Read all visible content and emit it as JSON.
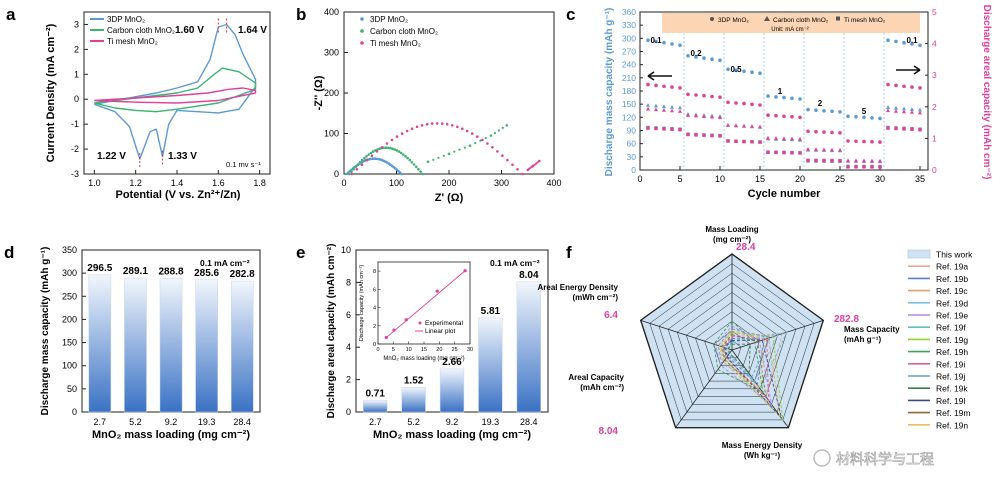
{
  "panels": {
    "a": {
      "letter": "a",
      "type": "line",
      "xlabel": "Potential (V vs. Zn²⁺/Zn)",
      "ylabel": "Current Density (mA cm⁻²)",
      "xlim": [
        0.95,
        1.85
      ],
      "ylim": [
        -3,
        3.5
      ],
      "xticks": [
        "1.0",
        "1.2",
        "1.4",
        "1.6",
        "1.8"
      ],
      "yticks": [
        "-3",
        "-2",
        "-1",
        "0",
        "1",
        "2",
        "3"
      ],
      "legend": [
        "3DP MnO₂",
        "Carbon cloth MnO₂",
        "Ti mesh MnO₂"
      ],
      "annotations": [
        "1.60 V",
        "1.64 V",
        "1.22 V",
        "1.33 V",
        "0.1 mv s⁻¹"
      ],
      "series": [
        {
          "name": "3DP MnO₂",
          "color": "#5b9bd5",
          "x": [
            1.0,
            1.1,
            1.2,
            1.3,
            1.4,
            1.5,
            1.56,
            1.6,
            1.64,
            1.68,
            1.72,
            1.78,
            1.78,
            1.7,
            1.6,
            1.5,
            1.4,
            1.36,
            1.33,
            1.3,
            1.27,
            1.22,
            1.17,
            1.1,
            1.0
          ],
          "y": [
            -0.2,
            -0.05,
            0.1,
            0.25,
            0.45,
            0.7,
            1.6,
            2.9,
            3.0,
            2.6,
            1.8,
            0.8,
            0.5,
            -0.4,
            -0.55,
            -0.5,
            -0.45,
            -1.0,
            -2.3,
            -1.2,
            -1.3,
            -2.4,
            -1.1,
            -0.5,
            -0.2
          ]
        },
        {
          "name": "Carbon cloth MnO₂",
          "color": "#3cb371",
          "x": [
            1.0,
            1.2,
            1.4,
            1.5,
            1.58,
            1.62,
            1.7,
            1.78,
            1.78,
            1.6,
            1.4,
            1.3,
            1.2,
            1.1,
            1.0
          ],
          "y": [
            -0.15,
            0.05,
            0.25,
            0.45,
            1.0,
            1.25,
            1.1,
            0.65,
            0.4,
            -0.15,
            -0.4,
            -0.5,
            -0.45,
            -0.35,
            -0.15
          ]
        },
        {
          "name": "Ti mesh MnO₂",
          "color": "#e0409a",
          "x": [
            1.0,
            1.2,
            1.4,
            1.55,
            1.65,
            1.72,
            1.78,
            1.78,
            1.6,
            1.4,
            1.2,
            1.0
          ],
          "y": [
            -0.05,
            0.05,
            0.15,
            0.25,
            0.4,
            0.45,
            0.35,
            0.25,
            -0.05,
            -0.15,
            -0.12,
            -0.05
          ]
        }
      ]
    },
    "b": {
      "letter": "b",
      "type": "scatter",
      "xlabel": "Z' (Ω)",
      "ylabel": "-Z'' (Ω)",
      "xlim": [
        0,
        400
      ],
      "ylim": [
        0,
        400
      ],
      "xticks": [
        "0",
        "100",
        "200",
        "300",
        "400"
      ],
      "yticks": [
        "0",
        "100",
        "200",
        "300",
        "400"
      ],
      "legend": [
        "3DP MnO₂",
        "Carbon cloth MnO₂",
        "Ti mesh MnO₂"
      ],
      "series": [
        {
          "name": "3DP MnO₂",
          "color": "#5b9bd5",
          "kind": "arc",
          "x0": 5,
          "x1": 110,
          "peak": 38,
          "tail": []
        },
        {
          "name": "Carbon cloth MnO₂",
          "color": "#3cb371",
          "kind": "arc",
          "x0": 10,
          "x1": 150,
          "peak": 65,
          "tail": [
            [
              160,
              30
            ],
            [
              200,
              50
            ],
            [
              240,
              70
            ],
            [
              280,
              95
            ],
            [
              310,
              120
            ]
          ]
        },
        {
          "name": "Ti mesh MnO₂",
          "color": "#e0409a",
          "kind": "arc",
          "x0": 15,
          "x1": 340,
          "peak": 125,
          "tail": [
            [
              350,
              10
            ],
            [
              360,
              20
            ],
            [
              372,
              32
            ]
          ]
        }
      ]
    },
    "c": {
      "letter": "c",
      "type": "scatter",
      "xlabel": "Cycle number",
      "ylabel_left": "Discharge mass capacity (mAh g⁻¹)",
      "ylabel_right": "Discharge areal capacity (mAh cm⁻²)",
      "xlim": [
        0,
        36
      ],
      "ylim_left": [
        0,
        360
      ],
      "ylim_right": [
        0,
        5
      ],
      "xticks": [
        "0",
        "5",
        "10",
        "15",
        "20",
        "25",
        "30",
        "35"
      ],
      "yticks_left": [
        "0",
        "30",
        "60",
        "90",
        "120",
        "150",
        "180",
        "210",
        "240",
        "270",
        "300",
        "330",
        "360"
      ],
      "yticks_right": [
        "0",
        "1",
        "2",
        "3",
        "4",
        "5"
      ],
      "legend": [
        "3DP MnO₂",
        "Carbon cloth MnO₂",
        "Ti mesh MnO₂"
      ],
      "legend_unit": "Unit: mA cm⁻²",
      "rate_labels": [
        {
          "x": 2,
          "text": "0.1"
        },
        {
          "x": 7,
          "text": "0.2"
        },
        {
          "x": 12,
          "text": "0.5"
        },
        {
          "x": 17.5,
          "text": "1"
        },
        {
          "x": 22.5,
          "text": "2"
        },
        {
          "x": 28,
          "text": "5"
        },
        {
          "x": 34,
          "text": "0.1"
        }
      ],
      "segment_boundaries": [
        5.5,
        10.5,
        15.5,
        20.5,
        25.5,
        30.5
      ],
      "mass_series": [
        {
          "name": "3DP MnO₂",
          "levels": [
            290,
            255,
            225,
            165,
            135,
            120,
            290
          ]
        },
        {
          "name": "Carbon cloth MnO₂",
          "levels": [
            145,
            125,
            100,
            70,
            45,
            20,
            140
          ]
        },
        {
          "name": "Ti mesh MnO₂",
          "levels": [
            95,
            80,
            65,
            40,
            20,
            8,
            95
          ]
        }
      ],
      "areal_series": [
        {
          "name": "3DP MnO₂",
          "levels": [
            2.65,
            2.35,
            2.1,
            1.7,
            1.2,
            0.9,
            2.65
          ]
        },
        {
          "name": "Carbon cloth MnO₂",
          "levels": [
            1.9,
            1.7,
            1.4,
            1.0,
            0.65,
            0.3,
            1.85
          ]
        },
        {
          "name": "Ti mesh MnO₂",
          "levels": [
            1.3,
            1.1,
            0.9,
            0.55,
            0.3,
            0.1,
            1.3
          ]
        }
      ]
    },
    "d": {
      "letter": "d",
      "type": "bar",
      "xlabel": "MnO₂ mass loading (mg cm⁻²)",
      "ylabel": "Discharge mass capacity (mAh g⁻¹)",
      "annotation": "0.1 mA cm⁻²",
      "categories": [
        "2.7",
        "5.2",
        "9.2",
        "19.3",
        "28.4"
      ],
      "values": [
        296.5,
        289.1,
        288.8,
        285.6,
        282.8
      ],
      "value_labels": [
        "296.5",
        "289.1",
        "288.8",
        "285.6",
        "282.8"
      ],
      "ylim": [
        0,
        350
      ],
      "yticks": [
        "0",
        "50",
        "100",
        "150",
        "200",
        "250",
        "300",
        "350"
      ]
    },
    "e": {
      "letter": "e",
      "type": "bar",
      "xlabel": "MnO₂ mass loading (mg cm⁻²)",
      "ylabel": "Discharge areal capacity (mAh cm⁻²)",
      "annotation": "0.1 mA cm⁻²",
      "categories": [
        "2.7",
        "5.2",
        "9.2",
        "19.3",
        "28.4"
      ],
      "values": [
        0.71,
        1.52,
        2.66,
        5.81,
        8.04
      ],
      "value_labels": [
        "0.71",
        "1.52",
        "2.66",
        "5.81",
        "8.04"
      ],
      "ylim": [
        0,
        10
      ],
      "yticks": [
        "0",
        "2",
        "4",
        "6",
        "8",
        "10"
      ],
      "inset": {
        "xlabel": "MnO₂ mass loading (mg cm⁻²)",
        "ylabel": "Discharge capacity (mAh cm⁻²)",
        "xticks": [
          "0",
          "5",
          "10",
          "15",
          "20",
          "25",
          "30"
        ],
        "yticks": [
          "0",
          "2",
          "4",
          "6",
          "8"
        ],
        "legend": [
          "Experimental",
          "Linear plot"
        ],
        "x": [
          2.7,
          5.2,
          9.2,
          19.3,
          28.4
        ],
        "y": [
          0.71,
          1.52,
          2.66,
          5.81,
          8.04
        ]
      }
    },
    "f": {
      "letter": "f",
      "type": "radar",
      "axes": [
        {
          "label": "Mass Loading",
          "unit": "(mg cm⁻²)",
          "max_label": "28.4"
        },
        {
          "label": "Mass Capacity",
          "unit": "(mAh g⁻¹)",
          "max_label": "282.8"
        },
        {
          "label": "Mass Energy Density",
          "unit": "(Wh kg⁻¹)",
          "max_label": ""
        },
        {
          "label": "Areal Capacity",
          "unit": "(mAh cm⁻²)",
          "max_label": "8.04"
        },
        {
          "label": "Areal Energy Density",
          "unit": "(mWh cm⁻²)",
          "max_label": "6.4"
        }
      ],
      "this_work": [
        1.0,
        1.0,
        1.0,
        1.0,
        1.0
      ],
      "refs": [
        {
          "name": "Ref. 19a",
          "color": "#e8a0a0",
          "values": [
            0.15,
            0.55,
            0.6,
            0.1,
            0.1
          ]
        },
        {
          "name": "Ref. 19b",
          "color": "#5b7fd6",
          "values": [
            0.12,
            0.35,
            0.45,
            0.08,
            0.07
          ]
        },
        {
          "name": "Ref. 19c",
          "color": "#e0a070",
          "values": [
            0.2,
            0.4,
            0.85,
            0.15,
            0.12
          ]
        },
        {
          "name": "Ref. 19d",
          "color": "#7ec0e8",
          "values": [
            0.1,
            0.5,
            0.4,
            0.06,
            0.05
          ]
        },
        {
          "name": "Ref. 19e",
          "color": "#b089d6",
          "values": [
            0.25,
            0.3,
            0.7,
            0.2,
            0.18
          ]
        },
        {
          "name": "Ref. 19f",
          "color": "#5fbfbf",
          "values": [
            0.08,
            0.6,
            0.5,
            0.05,
            0.05
          ]
        },
        {
          "name": "Ref. 19g",
          "color": "#9acd32",
          "values": [
            0.18,
            0.45,
            0.9,
            0.12,
            0.1
          ]
        },
        {
          "name": "Ref. 19h",
          "color": "#3aa05a",
          "values": [
            0.3,
            0.25,
            0.55,
            0.25,
            0.2
          ]
        },
        {
          "name": "Ref. 19i",
          "color": "#e06090",
          "values": [
            0.14,
            0.38,
            0.65,
            0.1,
            0.09
          ]
        },
        {
          "name": "Ref. 19j",
          "color": "#6a9bd1",
          "values": [
            0.22,
            0.42,
            0.35,
            0.18,
            0.15
          ]
        },
        {
          "name": "Ref. 19k",
          "color": "#3a7a4a",
          "values": [
            0.06,
            0.2,
            0.3,
            0.04,
            0.04
          ]
        },
        {
          "name": "Ref. 19l",
          "color": "#404a80",
          "values": [
            0.1,
            0.33,
            0.88,
            0.09,
            0.08
          ]
        },
        {
          "name": "Ref. 19m",
          "color": "#8a6a30",
          "values": [
            0.16,
            0.28,
            0.6,
            0.13,
            0.11
          ]
        },
        {
          "name": "Ref. 19n",
          "color": "#e8c060",
          "values": [
            0.2,
            0.36,
            0.5,
            0.16,
            0.14
          ]
        }
      ],
      "legend_this_work": "This work",
      "this_work_color": "#cfe2f3"
    }
  },
  "watermark": "材料科学与工程"
}
